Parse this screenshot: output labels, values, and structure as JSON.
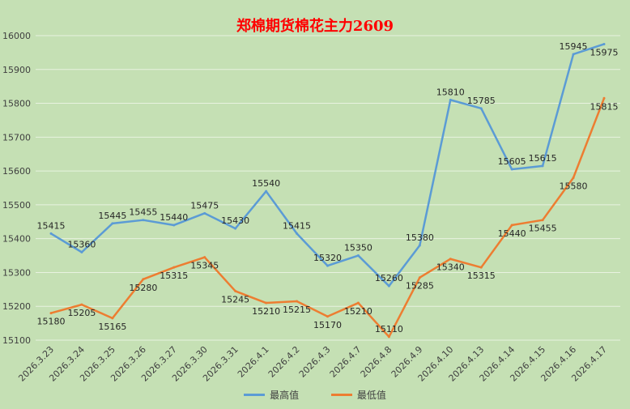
{
  "chart_data": {
    "type": "line",
    "title": "郑棉期货棉花主力2609",
    "categories": [
      "2026.3.23",
      "2026.3.24",
      "2026.3.25",
      "2026.3.26",
      "2026.3.27",
      "2026.3.30",
      "2026.3.31",
      "2026.4.1",
      "2026.4.2",
      "2026.4.3",
      "2026.4.7",
      "2026.4.8",
      "2026.4.9",
      "2026.4.10",
      "2026.4.13",
      "2026.4.14",
      "2026.4.15",
      "2026.4.16",
      "2026.4.17"
    ],
    "series": [
      {
        "name": "最高值",
        "color": "#5b9bd5",
        "values": [
          15415,
          15360,
          15445,
          15455,
          15440,
          15475,
          15430,
          15540,
          15415,
          15320,
          15350,
          15260,
          15380,
          15810,
          15785,
          15605,
          15615,
          15945,
          15975
        ]
      },
      {
        "name": "最低值",
        "color": "#ed7d31",
        "values": [
          15180,
          15205,
          15165,
          15280,
          15315,
          15345,
          15245,
          15210,
          15215,
          15170,
          15210,
          15110,
          15285,
          15340,
          15315,
          15440,
          15455,
          15580,
          15815
        ]
      }
    ],
    "ylim": [
      15100,
      16000
    ],
    "yticks": [
      15100,
      15200,
      15300,
      15400,
      15500,
      15600,
      15700,
      15800,
      15900,
      16000
    ],
    "grid": true,
    "legend": "bottom"
  }
}
